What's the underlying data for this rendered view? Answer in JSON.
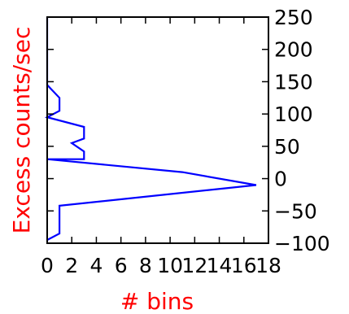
{
  "chart_data": {
    "type": "line",
    "title": "",
    "xlabel": "# bins",
    "ylabel": "Excess counts/sec",
    "xlabel_color": "#ff0000",
    "ylabel_color": "#ff0000",
    "line_color": "#0000ff",
    "xlim": [
      0,
      18
    ],
    "ylim": [
      -100,
      250
    ],
    "x_ticks": [
      0,
      2,
      4,
      6,
      8,
      10,
      12,
      14,
      16,
      18
    ],
    "y_ticks": [
      -100,
      -50,
      0,
      50,
      100,
      150,
      200,
      250
    ],
    "x_tick_labels": [
      "0",
      "2",
      "4",
      "6",
      "8",
      "10",
      "12",
      "14",
      "16",
      "18"
    ],
    "y_tick_labels": [
      "−100",
      "−50",
      "0",
      "50",
      "100",
      "150",
      "200",
      "250"
    ],
    "y_axis_position": "right",
    "grid": false,
    "series": [
      {
        "x": [
          0,
          1,
          1,
          17,
          11,
          0,
          3,
          3,
          2,
          3,
          3,
          0,
          1,
          1,
          0,
          0,
          0
        ],
        "y": [
          -95,
          -85,
          -42,
          -10,
          10,
          30,
          30,
          42,
          55,
          62,
          80,
          95,
          105,
          125,
          145,
          200,
          250
        ]
      }
    ]
  }
}
